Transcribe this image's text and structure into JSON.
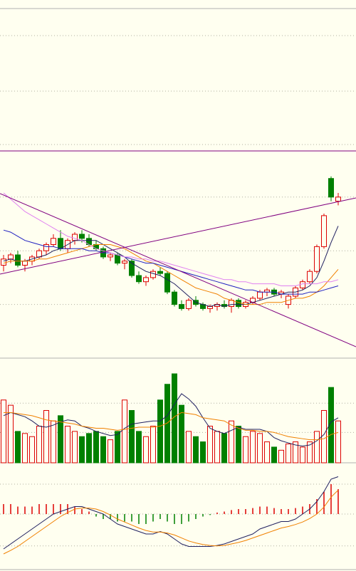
{
  "chart_data": [
    {
      "type": "candlestick",
      "up_color": "#dd0000",
      "down_color": "#008000",
      "ylim": [
        0,
        100
      ],
      "ygrid": [
        78,
        52,
        26
      ],
      "ohlc": [
        [
          45,
          50,
          42,
          48
        ],
        [
          48,
          51,
          46,
          50
        ],
        [
          50,
          52,
          44,
          45
        ],
        [
          45,
          48,
          42,
          47
        ],
        [
          47,
          50,
          45,
          49
        ],
        [
          49,
          53,
          48,
          52
        ],
        [
          52,
          56,
          50,
          55
        ],
        [
          55,
          60,
          54,
          58
        ],
        [
          58,
          62,
          52,
          53
        ],
        [
          53,
          58,
          51,
          57
        ],
        [
          57,
          61,
          55,
          60
        ],
        [
          60,
          62,
          56,
          58
        ],
        [
          58,
          60,
          54,
          55
        ],
        [
          55,
          57,
          52,
          53
        ],
        [
          53,
          54,
          48,
          49
        ],
        [
          49,
          51,
          47,
          50
        ],
        [
          50,
          51,
          45,
          46
        ],
        [
          46,
          48,
          43,
          47
        ],
        [
          47,
          48,
          39,
          40
        ],
        [
          40,
          42,
          36,
          37
        ],
        [
          37,
          40,
          35,
          39
        ],
        [
          39,
          43,
          38,
          42
        ],
        [
          42,
          44,
          40,
          41
        ],
        [
          41,
          42,
          31,
          32
        ],
        [
          32,
          33,
          25,
          26
        ],
        [
          26,
          28,
          23,
          24
        ],
        [
          24,
          29,
          23,
          28
        ],
        [
          28,
          30,
          25,
          26
        ],
        [
          26,
          27,
          23,
          24
        ],
        [
          24,
          26,
          22,
          25
        ],
        [
          25,
          27,
          23,
          26
        ],
        [
          26,
          28,
          24,
          25
        ],
        [
          25,
          29,
          22,
          28
        ],
        [
          28,
          29,
          24,
          25
        ],
        [
          25,
          28,
          24,
          27
        ],
        [
          27,
          30,
          26,
          29
        ],
        [
          29,
          33,
          28,
          32
        ],
        [
          32,
          34,
          30,
          33
        ],
        [
          33,
          34,
          30,
          31
        ],
        [
          31,
          33,
          29,
          32
        ],
        [
          26,
          31,
          24,
          30
        ],
        [
          30,
          35,
          29,
          34
        ],
        [
          34,
          38,
          33,
          37
        ],
        [
          37,
          43,
          36,
          42
        ],
        [
          42,
          55,
          41,
          54
        ],
        [
          54,
          70,
          53,
          69
        ],
        [
          87,
          88,
          76,
          78
        ],
        [
          76,
          80,
          74,
          78
        ]
      ],
      "lines": [
        {
          "color": "#202060",
          "values": [
            47,
            48,
            47,
            47,
            48,
            49,
            50,
            52,
            53,
            55,
            57,
            57,
            57,
            57,
            55,
            53,
            51,
            49,
            46,
            44,
            42,
            41,
            40,
            38,
            36,
            33,
            30,
            27,
            26,
            25,
            26,
            25,
            26,
            26,
            26,
            27,
            28,
            29,
            30,
            31,
            32,
            32,
            33,
            35,
            39,
            47,
            56,
            64
          ]
        },
        {
          "color": "#f08000",
          "values": [
            46,
            47,
            47,
            47,
            47,
            48,
            48,
            49,
            50,
            51,
            52,
            53,
            54,
            55,
            55,
            55,
            54,
            53,
            51,
            49,
            47,
            46,
            44,
            42,
            40,
            38,
            36,
            34,
            33,
            32,
            31,
            29,
            28,
            27,
            26,
            26,
            26,
            27,
            27,
            27,
            28,
            29,
            29,
            30,
            32,
            35,
            39,
            43
          ]
        },
        {
          "color": "#2020c0",
          "values": [
            62,
            61,
            59,
            57,
            56,
            55,
            54,
            54,
            53,
            53,
            53,
            53,
            52,
            52,
            51,
            51,
            50,
            49,
            48,
            47,
            46,
            46,
            45,
            44,
            43,
            42,
            41,
            40,
            39,
            38,
            37,
            36,
            35,
            34,
            33,
            33,
            32,
            32,
            32,
            31,
            31,
            31,
            31,
            32,
            32,
            33,
            34,
            35
          ]
        },
        {
          "color": "#e080f0",
          "values": [
            80,
            77,
            74,
            71,
            69,
            67,
            65,
            63,
            61,
            59,
            58,
            57,
            55,
            53,
            52,
            51,
            50,
            49,
            49,
            48,
            48,
            47,
            47,
            46,
            45,
            44,
            43,
            42,
            41,
            40,
            39,
            38,
            38,
            37,
            37,
            36,
            36,
            36,
            36,
            35,
            35,
            35,
            36,
            36,
            36,
            37,
            37,
            38
          ]
        }
      ],
      "trendlines": [
        {
          "color": "#800080",
          "x": [
            -0.5,
            49.5
          ],
          "y": [
            40.7,
            77.6
          ]
        },
        {
          "color": "#800080",
          "x": [
            -0.5,
            49.5
          ],
          "y": [
            79.7,
            5.5
          ]
        }
      ]
    },
    {
      "type": "bar",
      "up_color": "#dd0000",
      "down_color": "#008000",
      "ylim": [
        0,
        100
      ],
      "ygrid": [
        57,
        29
      ],
      "values": [
        60,
        55,
        30,
        28,
        25,
        35,
        50,
        40,
        45,
        35,
        30,
        25,
        28,
        30,
        25,
        22,
        30,
        60,
        50,
        30,
        25,
        35,
        60,
        75,
        85,
        55,
        30,
        25,
        20,
        35,
        30,
        28,
        40,
        35,
        25,
        30,
        28,
        20,
        15,
        12,
        18,
        20,
        15,
        20,
        30,
        50,
        72,
        40
      ],
      "lines": [
        {
          "color": "#202060",
          "values": [
            45,
            48,
            46,
            44,
            40,
            35,
            34,
            36,
            39,
            41,
            40,
            35,
            33,
            30,
            28,
            26,
            27,
            33,
            37,
            38,
            39,
            40,
            40,
            45,
            56,
            66,
            61,
            54,
            43,
            33,
            30,
            28,
            31,
            34,
            32,
            32,
            32,
            30,
            24,
            21,
            19,
            17,
            16,
            17,
            21,
            27,
            39,
            43
          ]
        },
        {
          "color": "#f08000",
          "values": [
            48,
            48,
            47,
            46,
            45,
            43,
            41,
            40,
            39,
            38,
            37,
            35,
            34,
            33,
            33,
            32,
            31,
            32,
            33,
            34,
            34,
            34,
            35,
            38,
            44,
            48,
            47,
            46,
            43,
            42,
            41,
            40,
            36,
            33,
            31,
            31,
            30,
            30,
            29,
            27,
            25,
            24,
            23,
            22,
            22,
            23,
            27,
            29
          ]
        }
      ]
    },
    {
      "type": "macd",
      "up_color": "#dd0000",
      "down_color": "#008000",
      "ylim": [
        -11,
        10
      ],
      "ygrid": [
        6,
        0,
        -6.4
      ],
      "values": [
        2,
        2,
        1.5,
        1.5,
        1.5,
        2,
        2,
        2,
        2,
        2,
        1.5,
        1,
        0.5,
        -0.5,
        -1,
        -1,
        -1.5,
        -1.5,
        -1.5,
        -2,
        -2,
        -1.5,
        -1,
        -1.5,
        -2,
        -2,
        -1.5,
        -1,
        -0.5,
        -0.2,
        0.3,
        0.5,
        0.8,
        1,
        1,
        1.2,
        1.5,
        1.5,
        1.2,
        1,
        1,
        1.2,
        1.5,
        2,
        3,
        4.5,
        6,
        5
      ],
      "lines": [
        {
          "color": "#202060",
          "values": [
            -7,
            -6,
            -5,
            -4,
            -3,
            -2,
            -1,
            0,
            0.5,
            1,
            1.5,
            1.5,
            1,
            0.5,
            0,
            -1,
            -2,
            -2.5,
            -3,
            -3.5,
            -4,
            -4,
            -3.5,
            -4,
            -5,
            -6,
            -6.5,
            -6.5,
            -6.5,
            -6.5,
            -6.3,
            -6,
            -5.5,
            -5,
            -4.5,
            -4,
            -3,
            -2.5,
            -2,
            -1.5,
            -1.5,
            -1,
            0,
            1,
            2.5,
            4.5,
            7,
            7.5
          ]
        },
        {
          "color": "#f08000",
          "values": [
            -8,
            -7.3,
            -6.5,
            -5.5,
            -4.5,
            -3.5,
            -2.5,
            -1.5,
            -0.5,
            0.3,
            1,
            1.2,
            1.2,
            1,
            0.5,
            -0.2,
            -1,
            -1.6,
            -2.2,
            -2.8,
            -3.3,
            -3.6,
            -3.6,
            -3.8,
            -4.2,
            -4.8,
            -5.4,
            -5.8,
            -6.1,
            -6.3,
            -6.4,
            -6.3,
            -6,
            -5.7,
            -5.3,
            -4.8,
            -4.3,
            -3.8,
            -3.3,
            -2.8,
            -2.5,
            -2.1,
            -1.6,
            -0.9,
            0,
            1.4,
            3.4,
            4.8
          ]
        }
      ]
    }
  ]
}
